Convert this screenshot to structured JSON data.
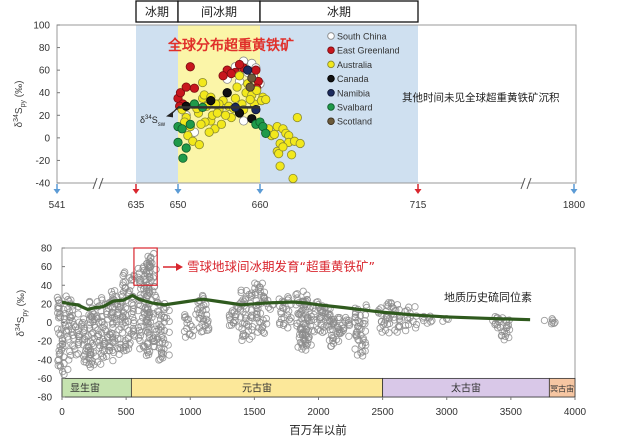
{
  "chart_data": [
    {
      "type": "scatter",
      "header_periods": [
        "冰期",
        "间冰期",
        "冰期"
      ],
      "title": "全球分布超重黄铁矿",
      "ylabel": {
        "main": "δ",
        "sup": "34",
        "s": "S",
        "sub": "py",
        "unit": " (‰)"
      },
      "ylim": [
        -40,
        100
      ],
      "yticks": [
        100,
        80,
        60,
        40,
        20,
        0,
        -20,
        -40
      ],
      "xticks": [
        541,
        635,
        650,
        660,
        715,
        1800
      ],
      "x_scale": "broken, non-linear",
      "arrow_colors": {
        "541": "#5b9bd5",
        "635": "#d9262e",
        "650": "#5b9bd5",
        "660": "#5b9bd5",
        "715": "#d9262e",
        "1800": "#5b9bd5"
      },
      "shaded_regions": [
        {
          "from": 635,
          "to": 715,
          "color": "#cfe0f0",
          "label": "glacial"
        },
        {
          "from": 650,
          "to": 660,
          "color": "#fbf5a8",
          "label": "interglacial"
        }
      ],
      "annotation_right": "其他时间未见全球超重黄铁矿沉积",
      "seawater_line": {
        "label_main": "δ",
        "label_sup": "34",
        "label_s": "S",
        "label_sub": "sw",
        "value": 27,
        "from": 650,
        "to": 660
      },
      "legend_position": "top-center",
      "series": [
        {
          "name": "South China",
          "fill": "#ffffff",
          "stroke": "#888888",
          "points": [
            [
              656,
              52
            ],
            [
              658,
              68
            ],
            [
              659,
              66
            ],
            [
              659.5,
              62
            ],
            [
              658.5,
              58
            ],
            [
              660,
              48
            ],
            [
              657.5,
              50
            ],
            [
              652,
              5
            ],
            [
              651,
              20
            ],
            [
              658,
              15
            ],
            [
              657,
              63
            ],
            [
              659.2,
              55
            ]
          ]
        },
        {
          "name": "East Greenland",
          "fill": "#c8161d",
          "stroke": "#7a0c10",
          "points": [
            [
              650,
              35
            ],
            [
              650.3,
              40
            ],
            [
              650.6,
              30
            ],
            [
              651,
              45
            ],
            [
              651.5,
              63
            ],
            [
              652,
              44
            ],
            [
              656,
              60
            ],
            [
              657,
              58
            ],
            [
              658,
              62
            ],
            [
              657.5,
              65
            ],
            [
              659.5,
              60
            ],
            [
              659.8,
              50
            ],
            [
              659.6,
              44
            ],
            [
              650.2,
              28
            ],
            [
              655.5,
              55
            ],
            [
              656.5,
              57
            ]
          ]
        },
        {
          "name": "Australia",
          "fill": "#f2e81c",
          "stroke": "#8a8a30",
          "points": [
            [
              650.5,
              25
            ],
            [
              651,
              18
            ],
            [
              651.5,
              10
            ],
            [
              652,
              30
            ],
            [
              652.5,
              22
            ],
            [
              653,
              35
            ],
            [
              653.2,
              38
            ],
            [
              653.5,
              28
            ],
            [
              654,
              15
            ],
            [
              654.2,
              20
            ],
            [
              654.5,
              8
            ],
            [
              655,
              25
            ],
            [
              655.3,
              12
            ],
            [
              655.5,
              33
            ],
            [
              656,
              40
            ],
            [
              656.2,
              28
            ],
            [
              656.5,
              18
            ],
            [
              657,
              35
            ],
            [
              657.2,
              45
            ],
            [
              657.5,
              55
            ],
            [
              657.8,
              30
            ],
            [
              658,
              25
            ],
            [
              658.3,
              40
            ],
            [
              658.5,
              48
            ],
            [
              659,
              38
            ],
            [
              659.3,
              30
            ],
            [
              659.6,
              42
            ],
            [
              651.2,
              2
            ],
            [
              651.8,
              -3
            ],
            [
              652.6,
              -6
            ],
            [
              653,
              49
            ],
            [
              654.8,
              22
            ],
            [
              653.8,
              5
            ],
            [
              662,
              5
            ],
            [
              663,
              8
            ],
            [
              664,
              2
            ],
            [
              665,
              3
            ],
            [
              666,
              10
            ],
            [
              668,
              8
            ],
            [
              669,
              4
            ],
            [
              670,
              2
            ],
            [
              667,
              -5
            ],
            [
              666,
              -12
            ],
            [
              666.5,
              -14
            ],
            [
              667,
              -25
            ],
            [
              670,
              -4
            ],
            [
              671,
              -15
            ],
            [
              671.5,
              -36
            ],
            [
              673,
              18
            ],
            [
              672,
              -3
            ],
            [
              674,
              -5
            ],
            [
              668,
              -8
            ],
            [
              661,
              36
            ],
            [
              660.5,
              33
            ],
            [
              662,
              34
            ],
            [
              655,
              30
            ],
            [
              654,
              36
            ],
            [
              652.3,
              26
            ],
            [
              656.8,
              26
            ],
            [
              653.3,
              14
            ],
            [
              655.8,
              20
            ],
            [
              658.8,
              34
            ],
            [
              650.8,
              14
            ],
            [
              652.8,
              12
            ],
            [
              654.6,
              30
            ]
          ]
        },
        {
          "name": "Canada",
          "fill": "#111111",
          "stroke": "#000000",
          "points": [
            [
              654,
              33
            ],
            [
              656,
              40
            ],
            [
              657.5,
              22
            ],
            [
              659,
              17
            ],
            [
              651,
              28
            ]
          ]
        },
        {
          "name": "Namibia",
          "fill": "#1c2b5e",
          "stroke": "#0c1430",
          "points": [
            [
              658.5,
              60
            ],
            [
              659.5,
              25
            ],
            [
              657,
              27
            ]
          ]
        },
        {
          "name": "Svalbard",
          "fill": "#1f9a4a",
          "stroke": "#0f5a2a",
          "points": [
            [
              650,
              10
            ],
            [
              650.5,
              8
            ],
            [
              650,
              -4
            ],
            [
              651,
              -9
            ],
            [
              650.6,
              -18
            ],
            [
              651.5,
              12
            ],
            [
              652,
              30
            ],
            [
              653,
              27
            ],
            [
              659.5,
              12
            ],
            [
              660,
              14
            ],
            [
              661,
              10
            ],
            [
              662,
              4
            ]
          ]
        },
        {
          "name": "Scotland",
          "fill": "#6b5a3a",
          "stroke": "#3a2f1e",
          "points": [
            [
              659,
              53
            ],
            [
              658.8,
              45
            ]
          ]
        }
      ]
    },
    {
      "type": "scatter",
      "xlabel": "百万年以前",
      "ylabel": {
        "main": "δ",
        "sup": "34",
        "s": "S",
        "sub": "py",
        "unit": " (‰)"
      },
      "xlim": [
        0,
        4000
      ],
      "ylim": [
        -80,
        80
      ],
      "xticks": [
        0,
        500,
        1000,
        1500,
        2000,
        2500,
        3000,
        3500,
        4000
      ],
      "yticks": [
        80,
        60,
        40,
        20,
        0,
        -20,
        -40,
        -60,
        -80
      ],
      "highlight": {
        "x_from": 600,
        "x_to": 750,
        "y_from": 40,
        "y_to": 80,
        "label": "雪球地球间冰期发育“超重黄铁矿”",
        "color": "#d9262e"
      },
      "trend_label": "地质历史硫同位素",
      "trend_color": "#2f5a1e",
      "trend": [
        [
          0,
          22
        ],
        [
          60,
          20
        ],
        [
          120,
          19
        ],
        [
          200,
          14
        ],
        [
          260,
          16
        ],
        [
          320,
          17
        ],
        [
          400,
          23
        ],
        [
          480,
          24
        ],
        [
          550,
          29
        ],
        [
          600,
          25
        ],
        [
          700,
          21
        ],
        [
          800,
          19
        ],
        [
          950,
          22
        ],
        [
          1100,
          25
        ],
        [
          1250,
          22
        ],
        [
          1400,
          19
        ],
        [
          1600,
          21
        ],
        [
          1800,
          22
        ],
        [
          1900,
          21
        ],
        [
          2000,
          19
        ],
        [
          2200,
          16
        ],
        [
          2500,
          11
        ],
        [
          2750,
          8
        ],
        [
          3000,
          6
        ],
        [
          3300,
          4.5
        ],
        [
          3650,
          3
        ]
      ],
      "point_ranges_note_free": null,
      "points_color": "#8c8c8c",
      "point_clusters": [
        [
          10,
          -55,
          30
        ],
        [
          90,
          -35,
          25
        ],
        [
          200,
          -48,
          10
        ],
        [
          260,
          -45,
          25
        ],
        [
          350,
          -40,
          28
        ],
        [
          430,
          -35,
          35
        ],
        [
          520,
          -30,
          55
        ],
        [
          640,
          -35,
          65
        ],
        [
          700,
          -25,
          75
        ],
        [
          790,
          -40,
          20
        ],
        [
          1000,
          -15,
          10
        ],
        [
          1100,
          -10,
          30
        ],
        [
          1350,
          -5,
          20
        ],
        [
          1440,
          -20,
          35
        ],
        [
          1550,
          -12,
          45
        ],
        [
          1600,
          15,
          25
        ],
        [
          1740,
          -5,
          30
        ],
        [
          1870,
          -30,
          35
        ],
        [
          1900,
          -25,
          25
        ],
        [
          2000,
          -10,
          25
        ],
        [
          2070,
          -10,
          20
        ],
        [
          2120,
          -25,
          12
        ],
        [
          2200,
          -15,
          5
        ],
        [
          2330,
          -35,
          18
        ],
        [
          2510,
          -12,
          22
        ],
        [
          2600,
          -10,
          22
        ],
        [
          2720,
          -8,
          18
        ],
        [
          2850,
          0,
          8
        ],
        [
          3000,
          2,
          5
        ],
        [
          3380,
          -5,
          8
        ],
        [
          3450,
          -18,
          6
        ],
        [
          3800,
          -2,
          5
        ]
      ],
      "eons": [
        {
          "label": "显生宙",
          "from": 0,
          "to": 541,
          "color": "#c6e3b0"
        },
        {
          "label": "元古宙",
          "from": 541,
          "to": 2500,
          "color": "#fce89a"
        },
        {
          "label": "太古宙",
          "from": 2500,
          "to": 3800,
          "color": "#d9c8e8"
        },
        {
          "label": "冥古宙",
          "from": 3800,
          "to": 4000,
          "color": "#f6c6a2"
        }
      ]
    }
  ]
}
